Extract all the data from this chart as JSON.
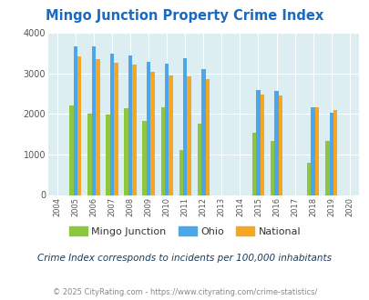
{
  "title": "Mingo Junction Property Crime Index",
  "title_color": "#1a6bbf",
  "subtitle": "Crime Index corresponds to incidents per 100,000 inhabitants",
  "footer": "© 2025 CityRating.com - https://www.cityrating.com/crime-statistics/",
  "years": [
    2004,
    2005,
    2006,
    2007,
    2008,
    2009,
    2010,
    2011,
    2012,
    2013,
    2014,
    2015,
    2016,
    2017,
    2018,
    2019,
    2020
  ],
  "mingo": {
    "2005": 2200,
    "2006": 2010,
    "2007": 1980,
    "2008": 2150,
    "2009": 1820,
    "2010": 2170,
    "2011": 1110,
    "2012": 1760,
    "2015": 1530,
    "2016": 1340,
    "2018": 800,
    "2019": 1340
  },
  "ohio": {
    "2005": 3680,
    "2006": 3680,
    "2007": 3480,
    "2008": 3450,
    "2009": 3280,
    "2010": 3250,
    "2011": 3370,
    "2012": 3110,
    "2015": 2590,
    "2016": 2570,
    "2018": 2170,
    "2019": 2040
  },
  "national": {
    "2005": 3420,
    "2006": 3360,
    "2007": 3270,
    "2008": 3210,
    "2009": 3040,
    "2010": 2960,
    "2011": 2920,
    "2012": 2870,
    "2015": 2490,
    "2016": 2450,
    "2018": 2170,
    "2019": 2090
  },
  "color_mingo": "#8dc63f",
  "color_ohio": "#4da6e8",
  "color_national": "#f5a623",
  "plot_bg": "#dceef2",
  "ylim": [
    0,
    4000
  ],
  "yticks": [
    0,
    1000,
    2000,
    3000,
    4000
  ],
  "legend_labels": [
    "Mingo Junction",
    "Ohio",
    "National"
  ],
  "subtitle_color": "#1a3a5c",
  "footer_color": "#888888",
  "footer_url_color": "#4da6e8"
}
